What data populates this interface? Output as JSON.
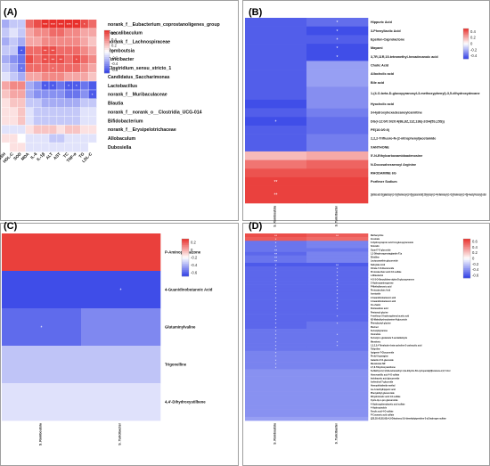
{
  "scale": {
    "low": "#2f3ee6",
    "mid": "#ffffff",
    "high": "#e8302c"
  },
  "chart_data": [
    {
      "id": "A",
      "type": "heatmap",
      "panel_label": "(A)",
      "columns": [
        "GSH",
        "HDL-C",
        "SOD",
        "MDA",
        "IL-6",
        "IL-1β",
        "ALT",
        "AST",
        "TC",
        "TNF-α",
        "TG",
        "LDL-C"
      ],
      "rows": [
        "norank_f__Eubacterium_coprostanoligenes_group",
        "Faecalibaculum",
        "norank_f__Lachnospiraceae",
        "Romboutsia",
        "Turicibacter",
        "Clostridium_sensu_stricto_1",
        "Candidatus_Saccharimonas",
        "Lactobacillus",
        "norank_f__Muribaculaceae",
        "Blautia",
        "norank_f__norank_o__Clostridia_UCG-014",
        "Bifidobacterium",
        "norank_f__Erysipelotrichaceae",
        "Allobaculum",
        "Dubosiella"
      ],
      "values": [
        [
          -0.3,
          -0.2,
          -0.2,
          0.5,
          0.6,
          0.7,
          0.8,
          0.8,
          0.8,
          0.8,
          0.6,
          0.5
        ],
        [
          -0.2,
          -0.1,
          -0.2,
          0.3,
          0.4,
          0.4,
          0.5,
          0.5,
          0.4,
          0.4,
          0.3,
          0.3
        ],
        [
          -0.3,
          -0.2,
          -0.3,
          0.3,
          0.3,
          0.4,
          0.4,
          0.4,
          0.4,
          0.4,
          0.3,
          0.2
        ],
        [
          -0.2,
          -0.2,
          -0.6,
          0.5,
          0.5,
          0.6,
          0.6,
          0.5,
          0.5,
          0.5,
          0.4,
          0.3
        ],
        [
          -0.3,
          -0.4,
          -0.5,
          0.6,
          0.5,
          0.6,
          0.6,
          0.6,
          0.5,
          0.6,
          0.5,
          0.4
        ],
        [
          -0.2,
          -0.3,
          -0.5,
          0.5,
          0.5,
          0.5,
          0.5,
          0.5,
          0.5,
          0.5,
          0.4,
          0.3
        ],
        [
          -0.1,
          -0.2,
          -0.3,
          0.3,
          0.3,
          0.4,
          0.4,
          0.4,
          0.3,
          0.3,
          0.3,
          0.2
        ],
        [
          0.3,
          0.4,
          0.4,
          -0.3,
          -0.4,
          -0.6,
          -0.6,
          -0.5,
          -0.6,
          -0.6,
          -0.5,
          -0.6
        ],
        [
          0.2,
          0.3,
          0.3,
          -0.3,
          -0.4,
          -0.4,
          -0.4,
          -0.4,
          -0.5,
          -0.5,
          -0.4,
          -0.6
        ],
        [
          0.1,
          0.2,
          0.2,
          -0.2,
          -0.2,
          -0.3,
          -0.3,
          -0.3,
          -0.3,
          -0.3,
          -0.2,
          -0.2
        ],
        [
          0.1,
          0.1,
          0.2,
          -0.1,
          -0.2,
          -0.2,
          -0.2,
          -0.2,
          -0.2,
          -0.2,
          -0.1,
          -0.1
        ],
        [
          0.1,
          0.1,
          0.2,
          -0.1,
          -0.2,
          -0.2,
          -0.2,
          -0.2,
          -0.2,
          -0.2,
          -0.1,
          -0.1
        ],
        [
          -0.1,
          -0.1,
          -0.1,
          0.1,
          0.2,
          0.2,
          0.2,
          0.1,
          0.2,
          0.2,
          0.1,
          0.1
        ],
        [
          0.1,
          0.1,
          0.0,
          -0.1,
          -0.1,
          -0.1,
          -0.2,
          -0.2,
          -0.1,
          -0.1,
          -0.1,
          -0.1
        ],
        [
          0.0,
          0.1,
          0.1,
          -0.1,
          -0.1,
          -0.1,
          -0.1,
          -0.1,
          -0.1,
          -0.1,
          -0.1,
          0.0
        ]
      ],
      "annotations": [
        {
          "row": 0,
          "col": 5,
          "text": "***"
        },
        {
          "row": 0,
          "col": 6,
          "text": "***"
        },
        {
          "row": 0,
          "col": 7,
          "text": "***"
        },
        {
          "row": 0,
          "col": 8,
          "text": "***"
        },
        {
          "row": 0,
          "col": 9,
          "text": "**"
        },
        {
          "row": 0,
          "col": 10,
          "text": "*"
        },
        {
          "row": 3,
          "col": 2,
          "text": "*"
        },
        {
          "row": 3,
          "col": 5,
          "text": "**"
        },
        {
          "row": 3,
          "col": 6,
          "text": "**"
        },
        {
          "row": 4,
          "col": 5,
          "text": "**"
        },
        {
          "row": 4,
          "col": 6,
          "text": "**"
        },
        {
          "row": 4,
          "col": 7,
          "text": "**"
        },
        {
          "row": 4,
          "col": 9,
          "text": "*"
        },
        {
          "row": 5,
          "col": 2,
          "text": "*"
        },
        {
          "row": 5,
          "col": 6,
          "text": "*"
        },
        {
          "row": 7,
          "col": 5,
          "text": "*"
        },
        {
          "row": 7,
          "col": 6,
          "text": "*"
        },
        {
          "row": 7,
          "col": 8,
          "text": "*"
        },
        {
          "row": 7,
          "col": 9,
          "text": "*"
        },
        {
          "row": 8,
          "col": 11,
          "text": "*"
        }
      ],
      "legend_ticks": [
        "0.6",
        "0.4",
        "0.2",
        "0",
        "-0.2",
        "-0.4",
        "-0.6"
      ],
      "vrange": [
        -0.7,
        0.7
      ]
    },
    {
      "id": "B",
      "type": "heatmap",
      "panel_label": "(B)",
      "columns": [
        "S_Romboutsia",
        "S_Turicibacter"
      ],
      "rows": [
        "Hippuric Acid",
        "3-Phenyllactic Acid",
        "Epsilon-Caprolactone",
        "Mayami",
        "3,7R,11R,15-tetramethyl-hexadecanoic acid",
        "Cholic Acid",
        "Allocholic acid",
        "Bile acid",
        "1-(4-O-beta-D-glucopyranosyl-3-methoxyphenyl)-3,5-dihydroxydecane",
        "Hyocholic acid",
        "3-Hydroxyhexadecanoylcarnitine",
        "DG(i-12:0/0:0/20:4(8E,8Z,11Z,13E)-2OH(5S,15S))",
        "PE(16:0/0:0)",
        "2,2,2-Trifluoro-N-(2-nitrophenyl)acetamide",
        "XANTHONE",
        "5'-N-Ethylcarboxamidoadenosine",
        "N-Docosahexaenoyl Arginine",
        "RHODAMINE 6G",
        "Porfimer Sodium",
        "Quillaic acid 3-[galactosyl-(1->2)-[rhamnosyl-(1->3)]-glucuronide] 28-[xylosyl-(1->4)-rhamnosyl-(1->2)-[rhamnosyl-(1->3)]-4-acetyl-fucosyl] ester"
      ],
      "row_heights": [
        1,
        1,
        1,
        1,
        1,
        1,
        1,
        1,
        1.5,
        1,
        1,
        1,
        1,
        1,
        1,
        1,
        1,
        1,
        1,
        2
      ],
      "values": [
        [
          -0.5,
          -0.45
        ],
        [
          -0.5,
          -0.55
        ],
        [
          -0.5,
          -0.5
        ],
        [
          -0.5,
          -0.55
        ],
        [
          -0.5,
          -0.55
        ],
        [
          -0.5,
          -0.3
        ],
        [
          -0.5,
          -0.3
        ],
        [
          -0.5,
          -0.3
        ],
        [
          -0.5,
          -0.35
        ],
        [
          -0.55,
          -0.35
        ],
        [
          -0.5,
          -0.4
        ],
        [
          -0.55,
          -0.45
        ],
        [
          -0.5,
          -0.45
        ],
        [
          -0.5,
          -0.4
        ],
        [
          -0.5,
          -0.4
        ],
        [
          0.2,
          0.25
        ],
        [
          0.4,
          0.45
        ],
        [
          0.5,
          0.5
        ],
        [
          0.55,
          0.55
        ],
        [
          0.55,
          0.55
        ]
      ],
      "annotations": [
        {
          "row": 0,
          "col": 1,
          "text": "*"
        },
        {
          "row": 1,
          "col": 1,
          "text": "*"
        },
        {
          "row": 2,
          "col": 1,
          "text": "*"
        },
        {
          "row": 3,
          "col": 1,
          "text": "*"
        },
        {
          "row": 4,
          "col": 1,
          "text": "*"
        },
        {
          "row": 11,
          "col": 0,
          "text": "*"
        },
        {
          "row": 18,
          "col": 0,
          "text": "**"
        },
        {
          "row": 19,
          "col": 0,
          "text": "**"
        }
      ],
      "legend_ticks": [
        "0.4",
        "0.2",
        "0",
        "-0.2",
        "-0.4"
      ],
      "vrange": [
        -0.6,
        0.6
      ]
    },
    {
      "id": "C",
      "type": "heatmap",
      "panel_label": "(C)",
      "columns": [
        "S_Romboutsia",
        "S_Turicibacter"
      ],
      "rows": [
        "P-Aminophenazone",
        "4-Guanidinobutanoic Acid",
        "Glutaminylvaline",
        "Trigonelline",
        "4,4'-Dihydroxystilbene"
      ],
      "values": [
        [
          0.6,
          0.6
        ],
        [
          -0.6,
          -0.6
        ],
        [
          -0.5,
          -0.4
        ],
        [
          -0.2,
          -0.2
        ],
        [
          -0.1,
          -0.1
        ]
      ],
      "annotations": [
        {
          "row": 1,
          "col": 1,
          "text": "*"
        },
        {
          "row": 2,
          "col": 0,
          "text": "*"
        }
      ],
      "legend_ticks": [
        "0.2",
        "0",
        "-0.2",
        "-0.4",
        "-0.6"
      ],
      "vrange": [
        -0.65,
        0.65
      ]
    },
    {
      "id": "D",
      "type": "heatmap",
      "panel_label": "(D)",
      "columns": [
        "S_Romboutsia",
        "S_Turicibacter"
      ],
      "rows": [
        "Methacycline",
        "Inosinate",
        "3-Hydroxycaproic acid 3-d-glucopyranoside",
        "Scleratin",
        "Guanl-7-O-glucoside",
        "1,2-Dihydroxyprostaglandin F1a",
        "Ethidline",
        "Lactucaxanthin glucuronide",
        "Salicylate Acid",
        "Citrate-7-O-Glucuronide",
        "Protocatechuic acid 3-O-sulfate",
        "L-Mileolactol",
        "4-O-3-O-Benzylidene-alpha-D-glucopyranose",
        "2-Hydroxyaminopyrene",
        "P-Methylbenzoic acid",
        "Protocatechuic Acid",
        "Isoniazide",
        "2-Guanidinobutanoic acid",
        "4-Guanidinobutanoic acid",
        "Cis-Zeatin",
        "Pentanedioic acid",
        "Pentanoyl glycine",
        "4-methoxy-3-hydroxyphenyl acetic acid",
        "N2-Maleylhydroxylamine-N-glucoside",
        "Phenylacetyl glycine",
        "Pterinol",
        "N-Acetyltyramine",
        "Oxoindole",
        "N-Acetyl-L-glutamate 5-semialdehyde",
        "Mevalonic",
        "1,3,2,3,4-Tetrahydro-beta-carboline-3-carboxylic acid",
        "Tulipoline",
        "Apigenin-7-Glucuronide",
        "Prolyl-Asparagine",
        "Galactin-3'-O-glucoside",
        "Mevalonate NR",
        "2,7,8-Trihydroxyxanthone",
        "5a-Methyl-2,2,4,6,8a-tetramethyl-1,4a-dihydro-5H-cyclopenta[d]furanone-2,2,7-triol",
        "Homovanillic acid 4-O-sulfate",
        "Indoleacetic acid glucuronide",
        "Isoferuloyl-7-glucoside",
        "Homophthalimide methyl",
        "Iso-3-methylhippuric acid",
        "Phenylethyl glucuronide",
        "Dihydroferulic acid 4-O-sulfate",
        "Cyclo-trp-L-pro glucuronide",
        "4-Hydroxyphenylacetic acid sulfate",
        "4-Hydroxyindole",
        "Ferulic acid 4-O-sulfate",
        "P-Coumaric acid sulfate",
        "[(2S,3S,4S,5S,6S)-4,5-Dihydroxy-2,6-dimethylpiperidine-3-yl] hydrogen sulfate"
      ],
      "values": [
        [
          0.6,
          0.55
        ],
        [
          0.55,
          0.5
        ],
        [
          -0.5,
          -0.45
        ],
        [
          -0.5,
          -0.45
        ],
        [
          -0.5,
          -0.5
        ],
        [
          -0.55,
          -0.45
        ],
        [
          -0.5,
          -0.45
        ],
        [
          -0.5,
          -0.45
        ],
        [
          -0.6,
          -0.6
        ],
        [
          -0.55,
          -0.55
        ],
        [
          -0.55,
          -0.55
        ],
        [
          -0.55,
          -0.55
        ],
        [
          -0.55,
          -0.55
        ],
        [
          -0.55,
          -0.55
        ],
        [
          -0.55,
          -0.55
        ],
        [
          -0.55,
          -0.55
        ],
        [
          -0.55,
          -0.55
        ],
        [
          -0.55,
          -0.55
        ],
        [
          -0.55,
          -0.55
        ],
        [
          -0.55,
          -0.55
        ],
        [
          -0.55,
          -0.55
        ],
        [
          -0.55,
          -0.55
        ],
        [
          -0.55,
          -0.55
        ],
        [
          -0.55,
          -0.55
        ],
        [
          -0.55,
          -0.5
        ],
        [
          -0.55,
          -0.5
        ],
        [
          -0.5,
          -0.5
        ],
        [
          -0.5,
          -0.5
        ],
        [
          -0.5,
          -0.5
        ],
        [
          -0.5,
          -0.5
        ],
        [
          -0.5,
          -0.5
        ],
        [
          -0.5,
          -0.5
        ],
        [
          -0.45,
          -0.45
        ],
        [
          -0.45,
          -0.45
        ],
        [
          -0.45,
          -0.45
        ],
        [
          -0.45,
          -0.45
        ],
        [
          -0.45,
          -0.45
        ],
        [
          -0.4,
          -0.4
        ],
        [
          -0.4,
          -0.4
        ],
        [
          -0.4,
          -0.4
        ],
        [
          -0.4,
          -0.4
        ],
        [
          -0.4,
          -0.4
        ],
        [
          -0.4,
          -0.4
        ],
        [
          -0.4,
          -0.4
        ],
        [
          -0.4,
          -0.4
        ],
        [
          -0.4,
          -0.4
        ],
        [
          -0.4,
          -0.4
        ],
        [
          -0.4,
          -0.4
        ],
        [
          -0.4,
          -0.4
        ],
        [
          -0.4,
          -0.4
        ],
        [
          -0.35,
          -0.35
        ]
      ],
      "annotations": [
        {
          "row": 0,
          "col": 0,
          "text": "**"
        },
        {
          "row": 0,
          "col": 1,
          "text": "**"
        },
        {
          "row": 1,
          "col": 0,
          "text": "*"
        },
        {
          "row": 2,
          "col": 0,
          "text": "*"
        },
        {
          "row": 3,
          "col": 0,
          "text": "*"
        },
        {
          "row": 4,
          "col": 0,
          "text": "**"
        },
        {
          "row": 5,
          "col": 0,
          "text": "**"
        },
        {
          "row": 6,
          "col": 0,
          "text": "**"
        },
        {
          "row": 7,
          "col": 0,
          "text": "**"
        },
        {
          "row": 8,
          "col": 0,
          "text": "*"
        },
        {
          "row": 9,
          "col": 0,
          "text": "*"
        },
        {
          "row": 10,
          "col": 0,
          "text": "*"
        },
        {
          "row": 11,
          "col": 0,
          "text": "*"
        },
        {
          "row": 12,
          "col": 0,
          "text": "*"
        },
        {
          "row": 13,
          "col": 0,
          "text": "*"
        },
        {
          "row": 14,
          "col": 0,
          "text": "*"
        },
        {
          "row": 15,
          "col": 0,
          "text": "*"
        },
        {
          "row": 16,
          "col": 0,
          "text": "*"
        },
        {
          "row": 17,
          "col": 0,
          "text": "*"
        },
        {
          "row": 18,
          "col": 0,
          "text": "*"
        },
        {
          "row": 19,
          "col": 0,
          "text": "*"
        },
        {
          "row": 20,
          "col": 0,
          "text": "*"
        },
        {
          "row": 21,
          "col": 0,
          "text": "*"
        },
        {
          "row": 22,
          "col": 0,
          "text": "*"
        },
        {
          "row": 23,
          "col": 0,
          "text": "*"
        },
        {
          "row": 24,
          "col": 0,
          "text": "*"
        },
        {
          "row": 25,
          "col": 0,
          "text": "*"
        },
        {
          "row": 26,
          "col": 0,
          "text": "*"
        },
        {
          "row": 27,
          "col": 0,
          "text": "*"
        },
        {
          "row": 28,
          "col": 0,
          "text": "*"
        },
        {
          "row": 29,
          "col": 0,
          "text": "*"
        },
        {
          "row": 30,
          "col": 0,
          "text": "*"
        },
        {
          "row": 31,
          "col": 0,
          "text": "*"
        },
        {
          "row": 32,
          "col": 0,
          "text": "*"
        },
        {
          "row": 33,
          "col": 0,
          "text": "*"
        },
        {
          "row": 34,
          "col": 0,
          "text": "*"
        },
        {
          "row": 35,
          "col": 0,
          "text": "*"
        },
        {
          "row": 36,
          "col": 0,
          "text": "*"
        },
        {
          "row": 8,
          "col": 1,
          "text": "**"
        },
        {
          "row": 9,
          "col": 1,
          "text": "*"
        },
        {
          "row": 10,
          "col": 1,
          "text": "*"
        },
        {
          "row": 11,
          "col": 1,
          "text": "*"
        },
        {
          "row": 12,
          "col": 1,
          "text": "*"
        },
        {
          "row": 13,
          "col": 1,
          "text": "*"
        },
        {
          "row": 14,
          "col": 1,
          "text": "*"
        },
        {
          "row": 15,
          "col": 1,
          "text": "*"
        },
        {
          "row": 16,
          "col": 1,
          "text": "*"
        },
        {
          "row": 17,
          "col": 1,
          "text": "*"
        },
        {
          "row": 18,
          "col": 1,
          "text": "*"
        },
        {
          "row": 19,
          "col": 1,
          "text": "*"
        },
        {
          "row": 20,
          "col": 1,
          "text": "*"
        },
        {
          "row": 22,
          "col": 1,
          "text": "*"
        },
        {
          "row": 24,
          "col": 1,
          "text": "*"
        },
        {
          "row": 27,
          "col": 1,
          "text": "*"
        },
        {
          "row": 29,
          "col": 1,
          "text": "*"
        },
        {
          "row": 30,
          "col": 1,
          "text": "*"
        }
      ],
      "legend_ticks": [
        "0.6",
        "0.4",
        "0.2",
        "0",
        "-0.2",
        "-0.4",
        "-0.6"
      ],
      "vrange": [
        -0.7,
        0.7
      ]
    }
  ]
}
